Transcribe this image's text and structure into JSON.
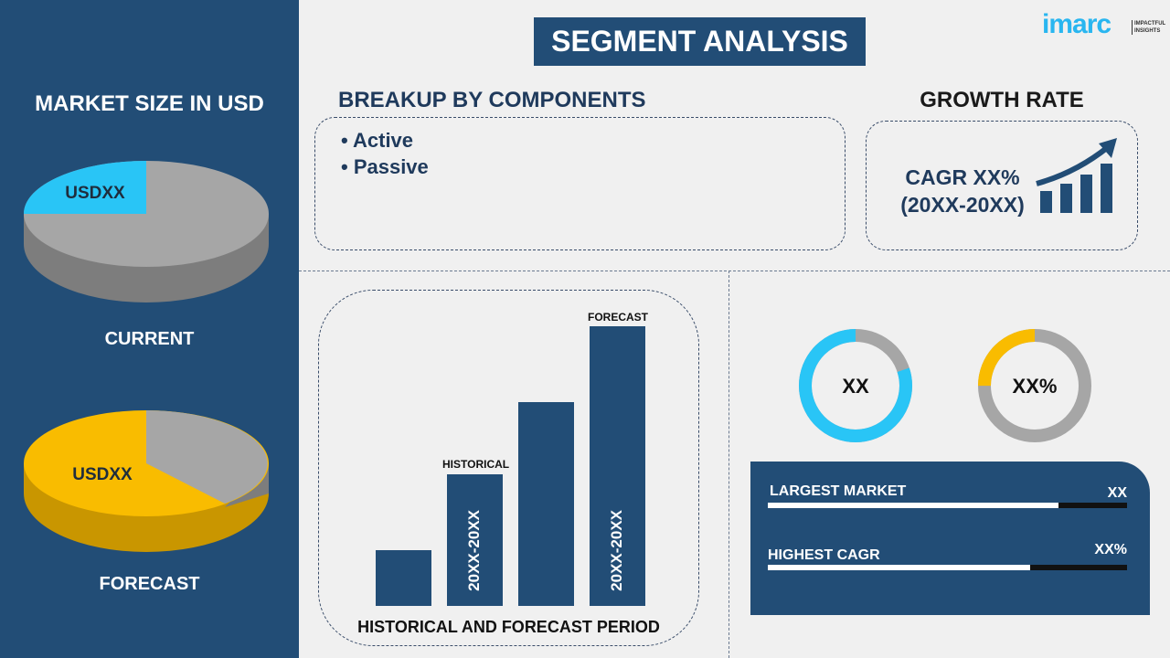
{
  "header": {
    "title": "SEGMENT ANALYSIS",
    "logo_text": "imarc",
    "logo_tagline": "IMPACTFUL INSIGHTS"
  },
  "left": {
    "title": "MARKET SIZE IN USD",
    "current": {
      "label": "CURRENT",
      "value": "USDXX",
      "slice_fraction": 0.25,
      "slice_color": "#29c5f6",
      "rest_color": "#a6a6a6"
    },
    "forecast": {
      "label": "FORECAST",
      "value": "USDXX",
      "slice_fraction": 0.63,
      "slice_color": "#f9bc00",
      "rest_color": "#a6a6a6"
    }
  },
  "components": {
    "title": "BREAKUP BY COMPONENTS",
    "items": [
      "• Active",
      "• Passive"
    ]
  },
  "growth": {
    "title": "GROWTH RATE",
    "cagr": "CAGR XX%",
    "period": "(20XX-20XX)",
    "icon": "growth-chart-arrow-icon"
  },
  "bar_chart": {
    "title": "HISTORICAL AND FORECAST PERIOD",
    "historical_label": "HISTORICAL",
    "forecast_label": "FORECAST",
    "historical_period": "20XX-20XX",
    "forecast_period": "20XX-20XX",
    "relative_values": [
      0.2,
      0.47,
      0.73,
      1.0
    ]
  },
  "donuts": [
    {
      "label": "XX",
      "fraction": 0.8,
      "color": "#29c5f6",
      "rest_color": "#a6a6a6"
    },
    {
      "label": "XX%",
      "fraction": 0.25,
      "color": "#f9bc00",
      "rest_color": "#a6a6a6"
    }
  ],
  "stats": [
    {
      "label": "LARGEST MARKET",
      "value": "XX",
      "fill": 0.81
    },
    {
      "label": "HIGHEST CAGR",
      "value": "XX%",
      "fill": 0.73
    }
  ]
}
